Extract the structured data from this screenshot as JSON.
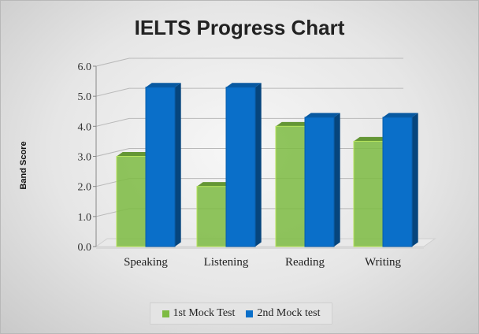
{
  "chart_data": {
    "type": "bar",
    "title": "IELTS Progress Chart",
    "ylabel": "Band Score",
    "xlabel": "",
    "categories": [
      "Speaking",
      "Listening",
      "Reading",
      "Writing"
    ],
    "series": [
      {
        "name": "1st Mock Test",
        "values": [
          3.0,
          2.0,
          4.0,
          3.5
        ],
        "color": "#7dbb42"
      },
      {
        "name": "2nd Mock test",
        "values": [
          5.3,
          5.3,
          4.3,
          4.3
        ],
        "color": "#0a6fc9"
      }
    ],
    "ylim": [
      0,
      6
    ],
    "yticks": [
      "0.0",
      "1.0",
      "2.0",
      "3.0",
      "4.0",
      "5.0",
      "6.0"
    ],
    "grid": true,
    "legend_position": "bottom",
    "style": "3d-clustered-column"
  }
}
